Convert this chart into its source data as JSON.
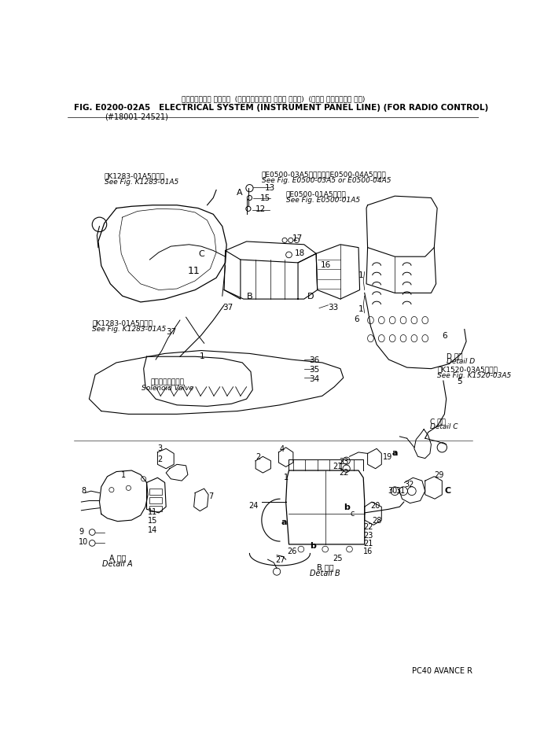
{
  "title_jp": "エレクトリカル システム  (インスツルメント パネル ライン)  (ラジオ コントロール ヨウ)",
  "title_en": "FIG. E0200-02A5   ELECTRICAL SYSTEM (INSTRUMENT PANEL LINE) (FOR RADIO CONTROL)",
  "subtitle": "(#18001-24521)",
  "footer": "PC40 AVANCE R",
  "bg": "#ffffff",
  "fg": "#000000"
}
